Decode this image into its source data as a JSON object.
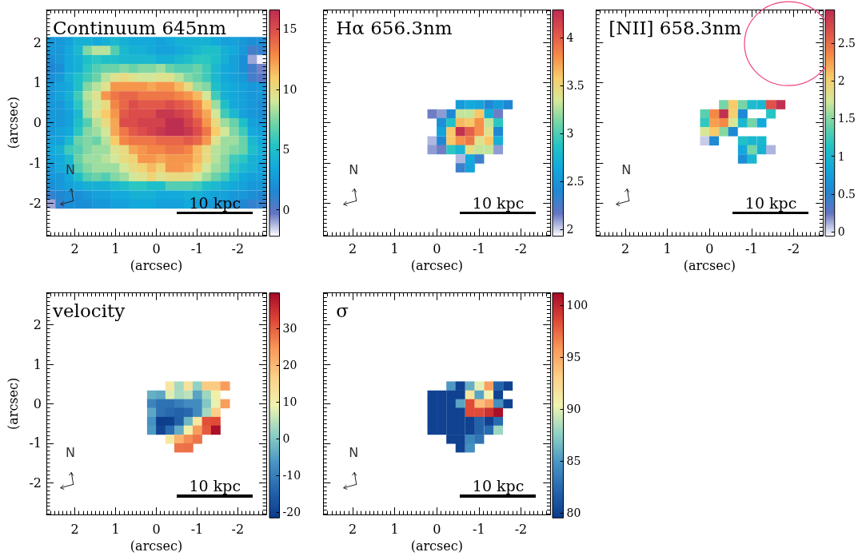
{
  "chart_data": [
    {
      "type": "scatter",
      "title": "Continuum 645nm",
      "xlabel": "(arcsec)",
      "ylabel": "(arcsec)",
      "marker": "square",
      "x": [
        2.59,
        2.36,
        2.14,
        1.91,
        1.69,
        1.46,
        1.24,
        1.01,
        0.79,
        0.56,
        0.34,
        0.11,
        -0.11,
        -0.34,
        -0.56,
        -0.79,
        -1.01,
        -1.24,
        -1.46,
        -1.69,
        -1.91,
        -2.14,
        -2.36,
        -2.59,
        2.59,
        2.36,
        2.14,
        1.91,
        1.69,
        1.46,
        1.24,
        1.01,
        0.79,
        0.56,
        0.34,
        0.11,
        -0.11,
        -0.34,
        -0.56,
        -0.79,
        -1.01,
        -1.24,
        -1.46,
        -1.69,
        -1.91,
        -2.14,
        -2.36,
        -2.59,
        2.59,
        2.36,
        2.14,
        1.91,
        1.69,
        1.46,
        1.24,
        1.01,
        0.79,
        0.56,
        0.34,
        0.11,
        -0.11,
        -0.34,
        -0.56,
        -0.79,
        -1.01,
        -1.24,
        -1.46,
        -1.69,
        -1.91,
        -2.14,
        -2.36,
        -2.59,
        2.59,
        2.36,
        2.14,
        1.91,
        1.69,
        1.46,
        1.24,
        1.01,
        0.79,
        0.56,
        0.34,
        0.11,
        -0.11,
        -0.34,
        -0.56,
        -0.79,
        -1.01,
        -1.24,
        -1.46,
        -1.69,
        -1.91,
        -2.14,
        -2.36,
        -2.59,
        2.59,
        2.36,
        2.14,
        1.91,
        1.69,
        1.46,
        1.24,
        1.01,
        0.79,
        0.56,
        0.34,
        0.11,
        -0.11,
        -0.34,
        -0.56,
        -0.79,
        -1.01,
        -1.24,
        -1.46,
        -1.69,
        -1.91,
        -2.14,
        -2.36,
        -2.59,
        2.59,
        2.36,
        2.14,
        1.91,
        1.69,
        1.46,
        1.24,
        1.01,
        0.79,
        0.56,
        0.34,
        0.11,
        -0.11,
        -0.34,
        -0.56,
        -0.79,
        -1.01,
        -1.24,
        -1.46,
        -1.69,
        -1.91,
        -2.14,
        -2.36,
        -2.59,
        2.59,
        2.36,
        2.14,
        1.91,
        1.69,
        1.46,
        1.24,
        1.01,
        0.79,
        0.56,
        0.34,
        0.11,
        -0.11,
        -0.34,
        -0.56,
        -0.79,
        -1.01,
        -1.24,
        -1.46,
        -1.69,
        -1.91,
        -2.14,
        -2.36,
        -2.59,
        2.59,
        2.36,
        2.14,
        1.91,
        1.69,
        1.46,
        1.24,
        1.01,
        0.79,
        0.56,
        0.34,
        0.11,
        -0.11,
        -0.34,
        -0.56,
        -0.79,
        -1.01,
        -1.24,
        -1.46,
        -1.69,
        -1.91,
        -2.14,
        -2.36,
        -2.59,
        2.59,
        2.36,
        2.14,
        1.91,
        1.69,
        1.46,
        1.24,
        1.01,
        0.79,
        0.56,
        0.34,
        0.11,
        -0.11,
        -0.34,
        -0.56,
        -0.79,
        -1.01,
        -1.24,
        -1.46,
        -1.69,
        -1.91,
        -2.14,
        -2.36,
        -2.59,
        2.59,
        2.36,
        2.14,
        1.91,
        1.69,
        1.46,
        1.24,
        1.01,
        0.79,
        0.56,
        0.34,
        0.11,
        -0.11,
        -0.34,
        -0.56,
        -0.79,
        -1.01,
        -1.24,
        -1.46,
        -1.69,
        -1.91,
        -2.14,
        -2.36,
        -2.59,
        2.59,
        2.36,
        2.14,
        1.91,
        1.69,
        1.46,
        1.24,
        1.01,
        0.79,
        0.56,
        0.34,
        0.11,
        -0.11,
        -0.34,
        -0.56,
        -0.79,
        -1.01,
        -1.24,
        -1.46,
        -1.69,
        -1.91,
        -2.14,
        -2.36,
        -2.59,
        2.59,
        2.36,
        2.14,
        1.91,
        1.69,
        1.46,
        1.24,
        1.01,
        0.79,
        0.56,
        0.34,
        0.11,
        -0.11,
        -0.34,
        -0.56,
        -0.79,
        -1.01,
        -1.24,
        -1.46,
        -1.69,
        -1.91,
        -2.14,
        -2.36,
        -2.59,
        2.59,
        2.36,
        2.14,
        1.91,
        1.69,
        1.46,
        1.24,
        1.01,
        0.79,
        0.56,
        0.34,
        0.11,
        -0.11,
        -0.34,
        -0.56,
        -0.79,
        -1.01,
        -1.24,
        -1.46,
        -1.69,
        -1.91,
        -2.14,
        -2.36,
        -2.59,
        2.59,
        2.36,
        2.14,
        1.91,
        1.69,
        1.46,
        1.24,
        1.01,
        0.79,
        0.56,
        0.34,
        0.11,
        -0.11,
        -0.34,
        -0.56,
        -0.79,
        -1.01,
        -1.24,
        -1.46,
        -1.69,
        -1.91,
        -2.14,
        -2.36,
        -2.59,
        2.59,
        2.36,
        2.14,
        1.91,
        1.69,
        1.46,
        1.24,
        1.01,
        0.79,
        0.56,
        0.34,
        0.11,
        -0.11,
        -0.34,
        -0.56,
        -0.79,
        -1.01,
        -1.24,
        -1.46,
        -1.69,
        -1.91,
        -2.14,
        -2.36,
        -2.59,
        2.59,
        2.36,
        2.14,
        1.91,
        1.69,
        1.46,
        1.24,
        1.01,
        0.79,
        0.56,
        0.34,
        0.11,
        -0.11,
        -0.34,
        -0.56,
        -0.79,
        -1.01,
        -1.24,
        -1.46,
        -1.69,
        -1.91,
        -2.14,
        -2.36,
        -2.59,
        2.59,
        2.36,
        2.14,
        1.91,
        1.69,
        1.46,
        1.24,
        1.01,
        0.79,
        0.56,
        0.34,
        0.11,
        -0.11,
        -0.34,
        -0.56,
        -0.79,
        -1.01,
        -1.24,
        -1.46,
        -1.69,
        -1.91,
        -2.14,
        -2.36,
        -2.59,
        2.59,
        2.36,
        2.14,
        1.91,
        1.69,
        1.46,
        1.24,
        1.01,
        0.79,
        0.56,
        0.34,
        0.11,
        -0.11,
        -0.34,
        -0.56,
        -0.79,
        -1.01,
        -1.24,
        -1.46,
        -1.69,
        -1.91,
        -2.14,
        -2.36,
        -2.59,
        2.59,
        2.36,
        2.14,
        1.91,
        1.69,
        1.46,
        1.24,
        1.01,
        0.79,
        0.56,
        0.34,
        0.11,
        -0.11,
        -0.34,
        -0.56,
        -0.79,
        -1.01,
        -1.24,
        -1.46,
        -1.69,
        -1.91,
        -2.14,
        -2.36,
        -2.59
      ],
      "values": [
        2.02,
        2.02,
        2.02,
        2.02,
        2.02,
        2.02,
        2.02,
        2.02,
        2.02,
        2.02,
        2.02,
        2.02,
        2.02,
        2.02,
        2.02,
        2.02,
        2.02,
        2.02,
        2.02,
        2.02,
        2.02,
        2.02,
        2.02,
        2.02,
        1.8,
        1.8,
        1.8,
        1.8,
        1.8,
        1.8,
        1.8,
        1.8,
        1.8,
        1.8,
        1.8,
        1.8,
        1.8,
        1.8,
        1.8,
        1.8,
        1.8,
        1.8,
        1.8,
        1.8,
        1.8,
        1.8,
        1.8,
        1.8,
        1.57,
        1.57,
        1.57,
        1.57,
        1.57,
        1.57,
        1.57,
        1.57,
        1.57,
        1.57,
        1.57,
        1.57,
        1.57,
        1.57,
        1.57,
        1.57,
        1.57,
        1.57,
        1.57,
        1.57,
        1.57,
        1.57,
        1.57,
        1.57,
        1.35,
        1.35,
        1.35,
        1.35,
        1.35,
        1.35,
        1.35,
        1.35,
        1.35,
        1.35,
        1.35,
        1.35,
        1.35,
        1.35,
        1.35,
        1.35,
        1.35,
        1.35,
        1.35,
        1.35,
        1.35,
        1.35,
        1.35,
        1.35,
        1.12,
        1.12,
        1.12,
        1.12,
        1.12,
        1.12,
        1.12,
        1.12,
        1.12,
        1.12,
        1.12,
        1.12,
        1.12,
        1.12,
        1.12,
        1.12,
        1.12,
        1.12,
        1.12,
        1.12,
        1.12,
        1.12,
        1.12,
        1.12,
        0.9,
        0.9,
        0.9,
        0.9,
        0.9,
        0.9,
        0.9,
        0.9,
        0.9,
        0.9,
        0.9,
        0.9,
        0.9,
        0.9,
        0.9,
        0.9,
        0.9,
        0.9,
        0.9,
        0.9,
        0.9,
        0.9,
        0.9,
        0.9,
        0.67,
        0.67,
        0.67,
        0.67,
        0.67,
        0.67,
        0.67,
        0.67,
        0.67,
        0.67,
        0.67,
        0.67,
        0.67,
        0.67,
        0.67,
        0.67,
        0.67,
        0.67,
        0.67,
        0.67,
        0.67,
        0.67,
        0.67,
        0.67,
        0.45,
        0.45,
        0.45,
        0.45,
        0.45,
        0.45,
        0.45,
        0.45,
        0.45,
        0.45,
        0.45,
        0.45,
        0.45,
        0.45,
        0.45,
        0.45,
        0.45,
        0.45,
        0.45,
        0.45,
        0.45,
        0.45,
        0.45,
        0.45,
        0.22,
        0.22,
        0.22,
        0.22,
        0.22,
        0.22,
        0.22,
        0.22,
        0.22,
        0.22,
        0.22,
        0.22,
        0.22,
        0.22,
        0.22,
        0.22,
        0.22,
        0.22,
        0.22,
        0.22,
        0.22,
        0.22,
        0.22,
        0.22,
        0,
        0,
        0,
        0,
        0,
        0,
        0,
        0,
        0,
        0,
        0,
        0,
        0,
        0,
        0,
        0,
        0,
        0,
        0,
        0,
        0,
        0,
        0,
        0,
        -0.22,
        -0.22,
        -0.22,
        -0.22,
        -0.22,
        -0.22,
        -0.22,
        -0.22,
        -0.22,
        -0.22,
        -0.22,
        -0.22,
        -0.22,
        -0.22,
        -0.22,
        -0.22,
        -0.22,
        -0.22,
        -0.22,
        -0.22,
        -0.22,
        -0.22,
        -0.22,
        -0.22,
        -0.45,
        -0.45,
        -0.45,
        -0.45,
        -0.45,
        -0.45,
        -0.45,
        -0.45,
        -0.45,
        -0.45,
        -0.45,
        -0.45,
        -0.45,
        -0.45,
        -0.45,
        -0.45,
        -0.45,
        -0.45,
        -0.45,
        -0.45,
        -0.45,
        -0.45,
        -0.45,
        -0.45,
        -0.67,
        -0.67,
        -0.67,
        -0.67,
        -0.67,
        -0.67,
        -0.67,
        -0.67,
        -0.67,
        -0.67,
        -0.67,
        -0.67,
        -0.67,
        -0.67,
        -0.67,
        -0.67,
        -0.67,
        -0.67,
        -0.67,
        -0.67,
        -0.67,
        -0.67,
        -0.67,
        -0.67,
        -0.9,
        -0.9,
        -0.9,
        -0.9,
        -0.9,
        -0.9,
        -0.9,
        -0.9,
        -0.9,
        -0.9,
        -0.9,
        -0.9,
        -0.9,
        -0.9,
        -0.9,
        -0.9,
        -0.9,
        -0.9,
        -0.9,
        -0.9,
        -0.9,
        -0.9,
        -0.9,
        -0.9,
        -1.12,
        -1.12,
        -1.12,
        -1.12,
        -1.12,
        -1.12,
        -1.12,
        -1.12,
        -1.12,
        -1.12,
        -1.12,
        -1.12,
        -1.12,
        -1.12,
        -1.12,
        -1.12,
        -1.12,
        -1.12,
        -1.12,
        -1.12,
        -1.12,
        -1.12,
        -1.12,
        -1.12,
        -1.35,
        -1.35,
        -1.35,
        -1.35,
        -1.35,
        -1.35,
        -1.35,
        -1.35,
        -1.35,
        -1.35,
        -1.35,
        -1.35,
        -1.35,
        -1.35,
        -1.35,
        -1.35,
        -1.35,
        -1.35,
        -1.35,
        -1.35,
        -1.35,
        -1.35,
        -1.35,
        -1.35,
        -1.57,
        -1.57,
        -1.57,
        -1.57,
        -1.57,
        -1.57,
        -1.57,
        -1.57,
        -1.57,
        -1.57,
        -1.57,
        -1.57,
        -1.57,
        -1.57,
        -1.57,
        -1.57,
        -1.57,
        -1.57,
        -1.57,
        -1.57,
        -1.57,
        -1.57,
        -1.57,
        -1.57,
        -1.8,
        -1.8,
        -1.8,
        -1.8,
        -1.8,
        -1.8,
        -1.8,
        -1.8,
        -1.8,
        -1.8,
        -1.8,
        -1.8,
        -1.8,
        -1.8,
        -1.8,
        -1.8,
        -1.8,
        -1.8,
        -1.8,
        -1.8,
        -1.8,
        -1.8,
        -1.8,
        -1.8,
        -2.02,
        -2.02,
        -2.02,
        -2.02,
        -2.02,
        -2.02,
        -2.02,
        -2.02,
        -2.02,
        -2.02,
        -2.02,
        -2.02,
        -2.02,
        -2.02,
        -2.02,
        -2.02,
        -2.02,
        -2.02,
        -2.02,
        -2.02,
        -2.02,
        -2.02,
        -2.02,
        -2.02
      ],
      "cvalues": [
        2.5,
        2.5,
        3,
        4,
        4,
        3.5,
        4,
        4.5,
        4,
        3.5,
        3.5,
        3.5,
        3,
        3.5,
        4,
        4,
        4,
        4,
        3.5,
        3,
        3,
        2.5,
        2,
        2,
        2.5,
        2.5,
        3.5,
        4.5,
        7.5,
        8.5,
        8.5,
        6.5,
        4.5,
        4,
        4,
        3.5,
        3,
        3,
        3.5,
        4,
        4.5,
        5,
        5,
        4,
        3.5,
        2.5,
        0.5,
        1,
        2,
        2.5,
        3.5,
        4,
        5,
        5.5,
        5,
        5,
        4.5,
        4.5,
        4.5,
        4.5,
        4,
        4,
        4.5,
        5,
        5.5,
        5.5,
        5,
        4,
        3,
        2,
        -1,
        -2,
        1.5,
        2,
        3.5,
        4,
        5.5,
        6.5,
        7,
        7,
        7.5,
        7,
        7.5,
        7.5,
        8,
        7,
        6.5,
        6.5,
        7,
        6,
        4.5,
        3.5,
        3,
        2,
        0.5,
        -0.5,
        2,
        2.5,
        4,
        5,
        6,
        7,
        8.5,
        9.5,
        10,
        9.5,
        9,
        9,
        9.5,
        9.5,
        8.5,
        7.5,
        7,
        6,
        4.5,
        3.5,
        3,
        2.5,
        0.5,
        0,
        2.5,
        3,
        3.5,
        5,
        7.5,
        8.5,
        9.5,
        12.5,
        12.5,
        12.5,
        12.5,
        12,
        12.5,
        12.5,
        11.5,
        10,
        8,
        7.5,
        5,
        4,
        3.5,
        3,
        2.5,
        2.5,
        2.5,
        3,
        4,
        6,
        8.5,
        9.5,
        12.5,
        13.5,
        14,
        14,
        13.5,
        13.5,
        13.5,
        13.5,
        13,
        12.5,
        11.5,
        9,
        6,
        4,
        3.5,
        3,
        2.5,
        2.5,
        2.5,
        2.5,
        3.5,
        5.5,
        8,
        9,
        10,
        13,
        14,
        15,
        14.5,
        14.5,
        14.5,
        15,
        14.5,
        14,
        13,
        11,
        8,
        5,
        3.5,
        3,
        2.5,
        2,
        2.5,
        2.5,
        3,
        4.5,
        8,
        9.5,
        11,
        12.5,
        14.5,
        15,
        15,
        15,
        16,
        16,
        15.5,
        15,
        13.5,
        12,
        9,
        6,
        4.5,
        3,
        2.5,
        2,
        2.5,
        2.5,
        3,
        5,
        6.5,
        8.5,
        10,
        12,
        15,
        15,
        15.5,
        15.5,
        15.5,
        16.5,
        16.5,
        15.5,
        14.5,
        12.5,
        10,
        8,
        7,
        5,
        3,
        2.5,
        2.5,
        3,
        3.5,
        5.5,
        7.5,
        8,
        9,
        12,
        13.5,
        14.5,
        15,
        15.5,
        16,
        16.5,
        16.5,
        16,
        15,
        13.5,
        11,
        9,
        7.5,
        6,
        3.5,
        3,
        3,
        3,
        4.5,
        7,
        7.5,
        7,
        8.5,
        11,
        13,
        13.5,
        13.5,
        13.5,
        14,
        14,
        14,
        14.5,
        14,
        12.5,
        9.5,
        8,
        8,
        7,
        4.5,
        3.5,
        3.5,
        4,
        6,
        6.5,
        7.5,
        8,
        8,
        9.5,
        10,
        12,
        12.5,
        13,
        13,
        13.5,
        13.5,
        13,
        11.5,
        10,
        8.5,
        8,
        7.5,
        7,
        5,
        4,
        3,
        3.5,
        4.5,
        7,
        8,
        8,
        8.5,
        9,
        10,
        10.5,
        12.5,
        12.5,
        12,
        12.5,
        12.5,
        12.5,
        11.5,
        10,
        8.5,
        7.5,
        6,
        5.5,
        4,
        3.5,
        2.5,
        3.5,
        4,
        6.5,
        7.5,
        8,
        8,
        8,
        9,
        10,
        10.5,
        11.5,
        10.5,
        12.5,
        12.5,
        12,
        11,
        9,
        8,
        7.5,
        5.5,
        4.5,
        4,
        3,
        2.5,
        2.5,
        3.5,
        5,
        6.5,
        7,
        6.5,
        7.5,
        8,
        9,
        9.5,
        10.5,
        9.5,
        10,
        10,
        10,
        9,
        8,
        7,
        6,
        4.5,
        3.5,
        3,
        3,
        2,
        2.5,
        3,
        3.5,
        4,
        4,
        4,
        4.5,
        5,
        5.5,
        5.5,
        5,
        5,
        6.5,
        6.5,
        6.5,
        6,
        5,
        4.5,
        4,
        3.5,
        3,
        2.5,
        2.5,
        1,
        1.5,
        2,
        2,
        2.5,
        3,
        3,
        3.5,
        3.5,
        4,
        4,
        4,
        3.5,
        3.5,
        3.5,
        4,
        4,
        3.5,
        3,
        3,
        2.5,
        2.5,
        2,
        1.5,
        -1,
        1,
        2,
        2,
        2,
        2.5,
        2.5,
        3,
        3,
        3.5,
        3.5,
        3.5,
        3,
        3,
        3,
        3.5,
        3,
        2.5,
        2.5,
        2.5,
        2,
        1.5,
        1,
        1
      ],
      "xlim": [
        2.7,
        -2.7
      ],
      "ylim": [
        -2.81,
        2.81
      ],
      "xticks": [
        2,
        1,
        0,
        -1,
        -2
      ],
      "yticks": [
        -2,
        -1,
        0,
        1,
        2
      ],
      "clim": [
        -2.2,
        16.6
      ],
      "cticks": [
        0,
        5,
        10,
        15
      ],
      "annotations": [
        "N",
        "10 kpc"
      ]
    },
    {
      "type": "scatter",
      "title": "Hα 656.3nm",
      "xlabel": "(arcsec)",
      "tick_labels": "x",
      "marker": "square",
      "x": [
        -0.56,
        -0.79,
        -1.01,
        -1.24,
        -1.46,
        -1.69,
        0.11,
        -0.11,
        -0.34,
        -0.56,
        -0.79,
        -1.01,
        -1.24,
        -1.46,
        -0.11,
        -0.34,
        -0.56,
        -0.79,
        -1.01,
        -1.24,
        -1.46,
        -0.11,
        -0.34,
        -0.56,
        -0.79,
        -1.01,
        -1.24,
        -1.46,
        0.11,
        -0.11,
        -0.34,
        -0.56,
        -0.79,
        -1.01,
        -1.24,
        -1.46,
        0.11,
        -0.11,
        -0.34,
        -0.56,
        -0.79,
        -1.01,
        -1.24,
        -1.46,
        -0.56,
        -0.79,
        -1.01,
        -0.56,
        -0.79
      ],
      "values": [
        0.45,
        0.45,
        0.45,
        0.45,
        0.45,
        0.45,
        0.22,
        0.22,
        0.22,
        0.22,
        0.22,
        0.22,
        0.22,
        0.22,
        0,
        0,
        0,
        0,
        0,
        0,
        0,
        -0.22,
        -0.22,
        -0.22,
        -0.22,
        -0.22,
        -0.22,
        -0.22,
        -0.45,
        -0.45,
        -0.45,
        -0.45,
        -0.45,
        -0.45,
        -0.45,
        -0.45,
        -0.67,
        -0.67,
        -0.67,
        -0.67,
        -0.67,
        -0.67,
        -0.67,
        -0.67,
        -0.9,
        -0.9,
        -0.9,
        -1.12,
        -1.12
      ],
      "cvalues": [
        2.55,
        2.65,
        2.6,
        2.4,
        2.55,
        2.4,
        2.15,
        2.1,
        2.4,
        3.3,
        3.3,
        3.6,
        2.7,
        2.15,
        2.45,
        2.85,
        3.65,
        3.6,
        3.8,
        3.3,
        2.9,
        2.6,
        3.6,
        4.25,
        4.0,
        3.8,
        3.4,
        2.4,
        2.05,
        2.4,
        3.6,
        3.8,
        3.9,
        3.4,
        3.6,
        2.7,
        2.1,
        2.15,
        2.9,
        2.75,
        3.45,
        3.3,
        3.3,
        2.1,
        2.05,
        2.65,
        2.3,
        2.3,
        2.6
      ],
      "xlim": [
        2.7,
        -2.7
      ],
      "ylim": [
        -2.81,
        2.81
      ],
      "xticks": [
        2,
        1,
        0,
        -1,
        -2
      ],
      "yticks": [
        -2,
        -1,
        0,
        1,
        2
      ],
      "clim": [
        1.93,
        4.29
      ],
      "cticks": [
        2,
        2.5,
        3,
        3.5,
        4
      ],
      "annotations": [
        "N",
        "10 kpc"
      ]
    },
    {
      "type": "scatter",
      "title": "[NII] 658.3nm",
      "xlabel": "(arcsec)",
      "tick_labels": "x",
      "marker": "square",
      "x": [
        -0.34,
        -0.56,
        -0.79,
        -1.01,
        -1.24,
        -1.46,
        -1.69,
        0.11,
        -0.11,
        -0.34,
        -0.56,
        -0.79,
        -1.46,
        0.11,
        -0.11,
        -0.34,
        -0.56,
        -0.79,
        -1.01,
        -1.24,
        0.11,
        -0.11,
        -0.34,
        -0.56,
        0.11,
        -0.11,
        -0.79,
        -1.01,
        -1.24,
        -0.79,
        -1.01,
        -1.24,
        -1.46,
        -0.79,
        -1.01
      ],
      "values": [
        0.45,
        0.45,
        0.45,
        0.45,
        0.45,
        0.45,
        0.45,
        0.22,
        0.22,
        0.22,
        0.22,
        0.22,
        0.22,
        0,
        0,
        0,
        0,
        0,
        0,
        0,
        -0.22,
        -0.22,
        -0.22,
        -0.22,
        -0.45,
        -0.45,
        -0.45,
        -0.45,
        -0.45,
        -0.67,
        -0.67,
        -0.67,
        -0.67,
        -0.9,
        -0.9
      ],
      "cvalues": [
        1.45,
        2.05,
        1.45,
        1.05,
        1.0,
        2.65,
        2.9,
        1.35,
        2.35,
        2.9,
        2.0,
        0.55,
        1.15,
        1.2,
        2.25,
        2.35,
        1.75,
        1.0,
        1.45,
        0.85,
        1.75,
        2.05,
        1.5,
        0.55,
        0.05,
        0.55,
        1.1,
        1.0,
        1.0,
        0.85,
        1.45,
        0.95,
        0.1,
        0.6,
        1.0
      ],
      "xlim": [
        2.7,
        -2.7
      ],
      "ylim": [
        -2.81,
        2.81
      ],
      "xticks": [
        2,
        1,
        0,
        -1,
        -2
      ],
      "yticks": [
        -2,
        -1,
        0,
        1,
        2
      ],
      "clim": [
        -0.06,
        2.94
      ],
      "cticks": [
        0,
        0.5,
        1,
        1.5,
        2,
        2.5
      ],
      "annotations": [
        "N",
        "10 kpc"
      ]
    },
    {
      "type": "scatter",
      "title": "velocity",
      "xlabel": "(arcsec)",
      "ylabel": "(arcsec)",
      "marker": "square",
      "x": [
        -0.34,
        -0.56,
        -0.79,
        -1.01,
        -1.24,
        -1.46,
        -1.69,
        0.11,
        -0.11,
        -0.34,
        -0.56,
        -0.79,
        -1.01,
        -1.24,
        -1.46,
        0.11,
        -0.11,
        -0.34,
        -0.56,
        -0.79,
        -1.01,
        -1.24,
        -1.46,
        -1.69,
        0.11,
        -0.11,
        -0.34,
        -0.56,
        -0.79,
        -1.01,
        -1.24,
        -1.46,
        0.11,
        -0.11,
        -0.34,
        -0.56,
        -0.79,
        -1.01,
        -1.24,
        -1.46,
        0.11,
        -0.11,
        -0.34,
        -0.56,
        -0.79,
        -1.01,
        -1.24,
        -1.46,
        -0.34,
        -0.56,
        -0.79,
        -1.01,
        -0.56,
        -0.79
      ],
      "values": [
        0.45,
        0.45,
        0.45,
        0.45,
        0.45,
        0.45,
        0.45,
        0.22,
        0.22,
        0.22,
        0.22,
        0.22,
        0.22,
        0.22,
        0.22,
        0,
        0,
        0,
        0,
        0,
        0,
        0,
        0,
        0,
        -0.22,
        -0.22,
        -0.22,
        -0.22,
        -0.22,
        -0.22,
        -0.22,
        -0.22,
        -0.45,
        -0.45,
        -0.45,
        -0.45,
        -0.45,
        -0.45,
        -0.45,
        -0.45,
        -0.67,
        -0.67,
        -0.67,
        -0.67,
        -0.67,
        -0.67,
        -0.67,
        -0.67,
        -0.9,
        -0.9,
        -0.9,
        -0.9,
        -1.12,
        -1.12
      ],
      "cvalues": [
        12,
        3,
        13,
        1.5,
        17.5,
        17.5,
        24,
        -3,
        -4,
        7.5,
        3.5,
        5,
        -4.5,
        2.5,
        10,
        -9,
        -12,
        -12,
        -10,
        -8,
        -8,
        0,
        8.5,
        24,
        -4,
        -12,
        -13.5,
        -14.5,
        -13.5,
        -8,
        3,
        17,
        -7,
        -21,
        -20.5,
        -15,
        -2,
        12,
        31.5,
        32,
        -6,
        -19.5,
        -13,
        -3.5,
        10,
        24,
        30.5,
        39,
        12,
        21,
        25.5,
        28,
        28,
        28.5
      ],
      "xlim": [
        2.7,
        -2.7
      ],
      "ylim": [
        -2.81,
        2.81
      ],
      "xticks": [
        2,
        1,
        0,
        -1,
        -2
      ],
      "yticks": [
        -2,
        -1,
        0,
        1,
        2
      ],
      "clim": [
        -21.5,
        39.7
      ],
      "cticks": [
        -20,
        -10,
        0,
        10,
        20,
        30
      ],
      "annotations": [
        "N",
        "10 kpc"
      ]
    },
    {
      "type": "scatter",
      "title": "σ",
      "xlabel": "(arcsec)",
      "tick_labels": "x",
      "marker": "square",
      "x": [
        -0.34,
        -0.56,
        -0.79,
        -1.01,
        -1.24,
        -1.46,
        -1.69,
        0.11,
        -0.11,
        -0.34,
        -0.56,
        -0.79,
        -1.01,
        -1.24,
        -1.46,
        0.11,
        -0.11,
        -0.34,
        -0.56,
        -0.79,
        -1.01,
        -1.24,
        -1.46,
        -1.69,
        0.11,
        -0.11,
        -0.34,
        -0.56,
        -0.79,
        -1.01,
        -1.24,
        -1.46,
        0.11,
        -0.11,
        -0.34,
        -0.56,
        -0.79,
        -1.01,
        -1.24,
        -1.46,
        0.11,
        -0.11,
        -0.34,
        -0.56,
        -0.79,
        -1.01,
        -1.24,
        -1.46,
        -0.34,
        -0.56,
        -0.79,
        -1.01,
        -0.56,
        -0.79
      ],
      "values": [
        0.45,
        0.45,
        0.45,
        0.45,
        0.45,
        0.45,
        0.45,
        0.22,
        0.22,
        0.22,
        0.22,
        0.22,
        0.22,
        0.22,
        0.22,
        0,
        0,
        0,
        0,
        0,
        0,
        0,
        0,
        0,
        -0.22,
        -0.22,
        -0.22,
        -0.22,
        -0.22,
        -0.22,
        -0.22,
        -0.22,
        -0.45,
        -0.45,
        -0.45,
        -0.45,
        -0.45,
        -0.45,
        -0.45,
        -0.45,
        -0.67,
        -0.67,
        -0.67,
        -0.67,
        -0.67,
        -0.67,
        -0.67,
        -0.67,
        -0.9,
        -0.9,
        -0.9,
        -0.9,
        -1.12,
        -1.12
      ],
      "cvalues": [
        85,
        80,
        86,
        90,
        95.5,
        82,
        80,
        80,
        80,
        80,
        80,
        91.5,
        85.5,
        90.5,
        80,
        80,
        80,
        80,
        85.5,
        98.5,
        94,
        95.5,
        84.5,
        80,
        80,
        80,
        80,
        80,
        98.5,
        98.5,
        99.5,
        101,
        80,
        80,
        80,
        80,
        80,
        82,
        80,
        82.5,
        80,
        80,
        80,
        80,
        80,
        82,
        82.5,
        88,
        80,
        80,
        84,
        83,
        80,
        84.5
      ],
      "xlim": [
        2.7,
        -2.7
      ],
      "ylim": [
        -2.81,
        2.81
      ],
      "xticks": [
        2,
        1,
        0,
        -1,
        -2
      ],
      "yticks": [
        -2,
        -1,
        0,
        1,
        2
      ],
      "clim": [
        79.5,
        101.2
      ],
      "cticks": [
        80,
        85,
        90,
        95,
        100
      ],
      "annotations": [
        "N",
        "10 kpc"
      ]
    }
  ]
}
